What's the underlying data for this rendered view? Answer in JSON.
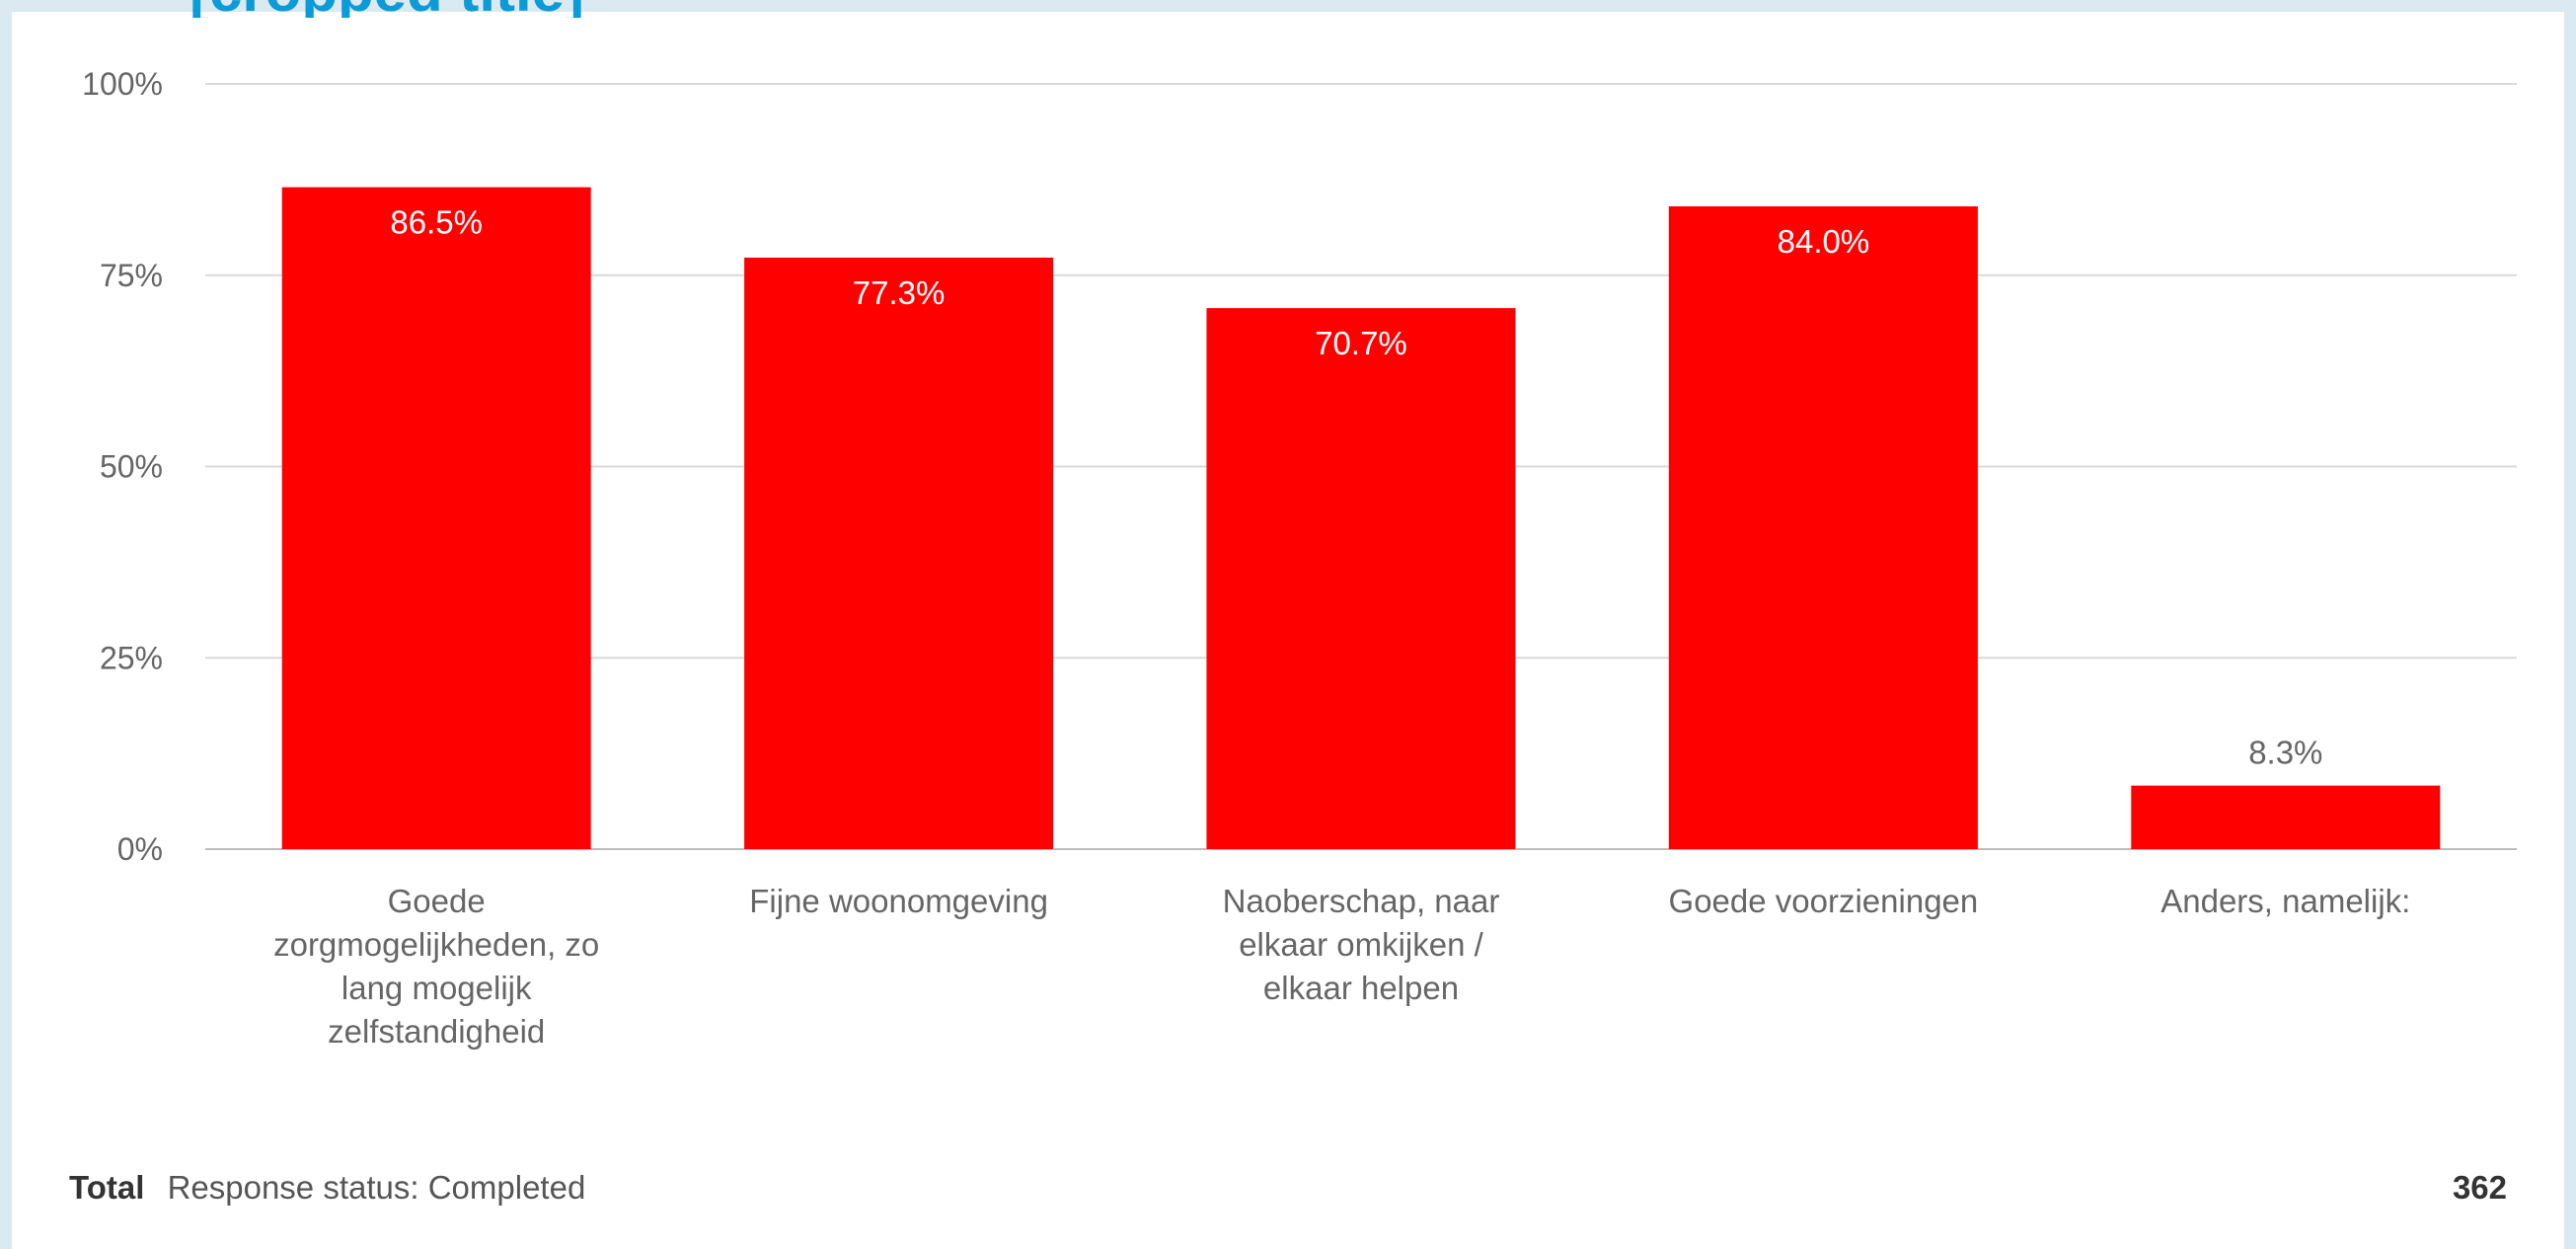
{
  "header": {
    "title": "[cropped title]"
  },
  "chart_data": {
    "type": "bar",
    "categories": [
      "Goede zorgmogelijkheden, zo lang mogelijk zelfstandigheid",
      "Fijne woonomgeving",
      "Naoberschap, naar elkaar omkijken / elkaar helpen",
      "Goede voorzieningen",
      "Anders, namelijk:"
    ],
    "category_lines": [
      [
        "Goede",
        "zorgmogelijkheden, zo",
        "lang mogelijk",
        "zelfstandigheid"
      ],
      [
        "Fijne woonomgeving"
      ],
      [
        "Naoberschap, naar",
        "elkaar omkijken /",
        "elkaar helpen"
      ],
      [
        "Goede voorzieningen"
      ],
      [
        "Anders, namelijk:"
      ]
    ],
    "values": [
      86.5,
      77.3,
      70.7,
      84.0,
      8.3
    ],
    "value_labels": [
      "86.5%",
      "77.3%",
      "70.7%",
      "84.0%",
      "8.3%"
    ],
    "y_ticks": [
      0,
      25,
      50,
      75,
      100
    ],
    "y_tick_labels": [
      "0%",
      "25%",
      "50%",
      "75%",
      "100%"
    ],
    "ylim": [
      0,
      100
    ],
    "bar_color": "#ff0000",
    "grid": true,
    "title": "",
    "xlabel": "",
    "ylabel": ""
  },
  "footer": {
    "total_label": "Total",
    "status_text": "Response status: Completed",
    "count": "362"
  }
}
